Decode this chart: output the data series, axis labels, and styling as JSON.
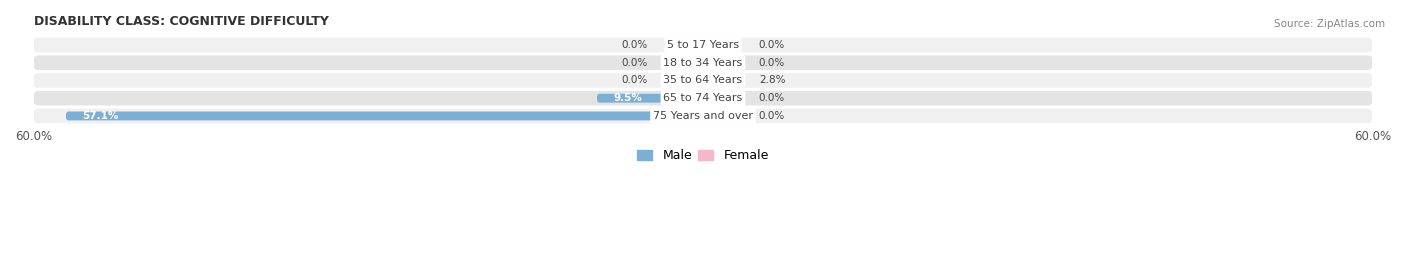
{
  "title": "DISABILITY CLASS: COGNITIVE DIFFICULTY",
  "source": "Source: ZipAtlas.com",
  "categories": [
    "5 to 17 Years",
    "18 to 34 Years",
    "35 to 64 Years",
    "65 to 74 Years",
    "75 Years and over"
  ],
  "male_values": [
    0.0,
    0.0,
    0.0,
    9.5,
    57.1
  ],
  "female_values": [
    0.0,
    0.0,
    2.8,
    0.0,
    0.0
  ],
  "max_val": 60.0,
  "male_color": "#7bafd4",
  "female_color": "#f08080",
  "female_color_light": "#f4b8c8",
  "bar_bg_light": "#f0f0f0",
  "bar_bg_dark": "#e4e4e4",
  "label_color": "#444444",
  "title_color": "#333333",
  "source_color": "#888888",
  "axis_label_color": "#555555",
  "figsize": [
    14.06,
    2.69
  ],
  "dpi": 100
}
